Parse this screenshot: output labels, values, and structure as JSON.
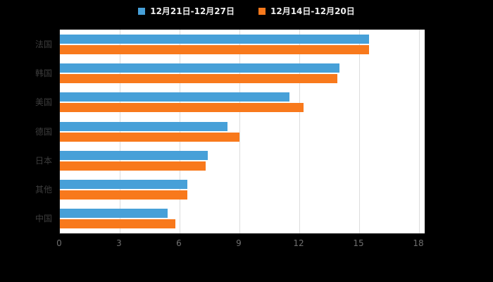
{
  "chart_data": {
    "type": "bar",
    "orientation": "horizontal",
    "title": "",
    "xlabel": "",
    "ylabel": "",
    "categories": [
      "法国",
      "韩国",
      "美国",
      "德国",
      "日本",
      "其他",
      "中国"
    ],
    "series": [
      {
        "name": "12月21日-12月27日",
        "color": "#47A0D8",
        "values": [
          15.5,
          14.0,
          11.5,
          8.4,
          7.4,
          6.4,
          5.4
        ]
      },
      {
        "name": "12月14日-12月20日",
        "color": "#F8791C",
        "values": [
          15.5,
          13.9,
          12.2,
          9.0,
          7.3,
          6.4,
          5.8
        ]
      }
    ],
    "xlim": [
      0,
      18
    ],
    "xticks": [
      0,
      3,
      6,
      9,
      12,
      15,
      18
    ],
    "grid": "vertical",
    "legend_position": "top",
    "plot_background": "#ffffff",
    "page_background": "#000000"
  }
}
